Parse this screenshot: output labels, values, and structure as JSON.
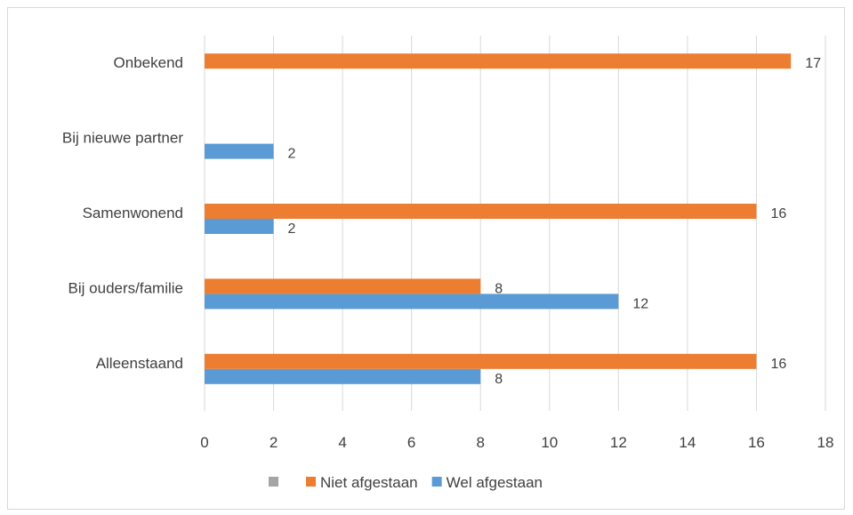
{
  "chart_data": {
    "type": "bar",
    "orientation": "horizontal",
    "categories": [
      "Alleenstaand",
      "Bij ouders/familie",
      "Samenwonend",
      "Bij nieuwe partner",
      "Onbekend"
    ],
    "series": [
      {
        "name": "",
        "values": [
          null,
          null,
          null,
          null,
          null
        ],
        "color": "#a5a5a5"
      },
      {
        "name": "Niet afgestaan",
        "values": [
          16,
          8,
          16,
          null,
          17
        ],
        "color": "#ed7d31"
      },
      {
        "name": "Wel afgestaan",
        "values": [
          8,
          12,
          2,
          2,
          null
        ],
        "color": "#5b9bd5"
      }
    ],
    "xlim": [
      0,
      18
    ],
    "x_ticks": [
      "0",
      "2",
      "4",
      "6",
      "8",
      "10",
      "12",
      "14",
      "16",
      "18"
    ],
    "grid": "vertical",
    "legend_position": "bottom",
    "title": "",
    "xlabel": "",
    "ylabel": ""
  }
}
